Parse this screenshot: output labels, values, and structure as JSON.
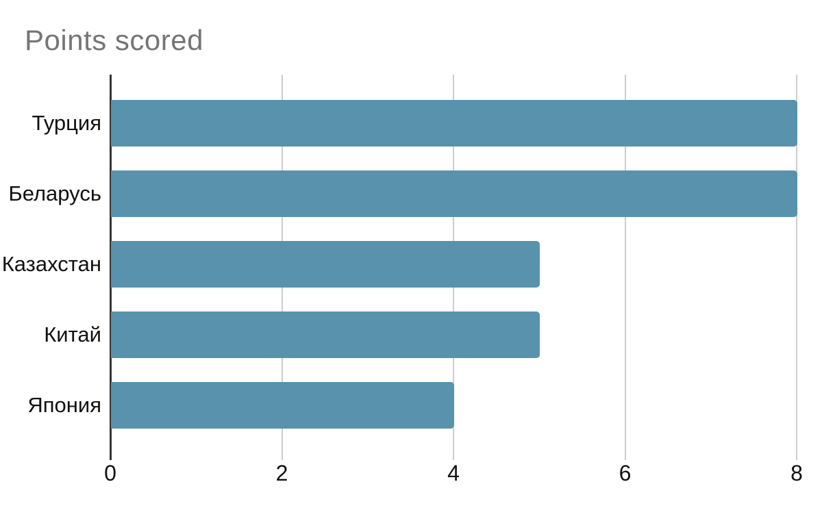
{
  "chart_data": {
    "type": "bar",
    "orientation": "horizontal",
    "title": "Points scored",
    "categories": [
      "Турция",
      "Беларусь",
      "Казахстан",
      "Китай",
      "Япония"
    ],
    "values": [
      8,
      8,
      5,
      5,
      4
    ],
    "x_ticks": [
      0,
      2,
      4,
      6,
      8
    ],
    "xlim": [
      0,
      8
    ],
    "xlabel": "",
    "ylabel": "",
    "grid": true,
    "legend": false,
    "colors": {
      "bar": "#5892ad",
      "gridline": "#cccccc",
      "axis": "#333333",
      "title": "#757575",
      "label": "#111111",
      "background": "#ffffff"
    }
  }
}
